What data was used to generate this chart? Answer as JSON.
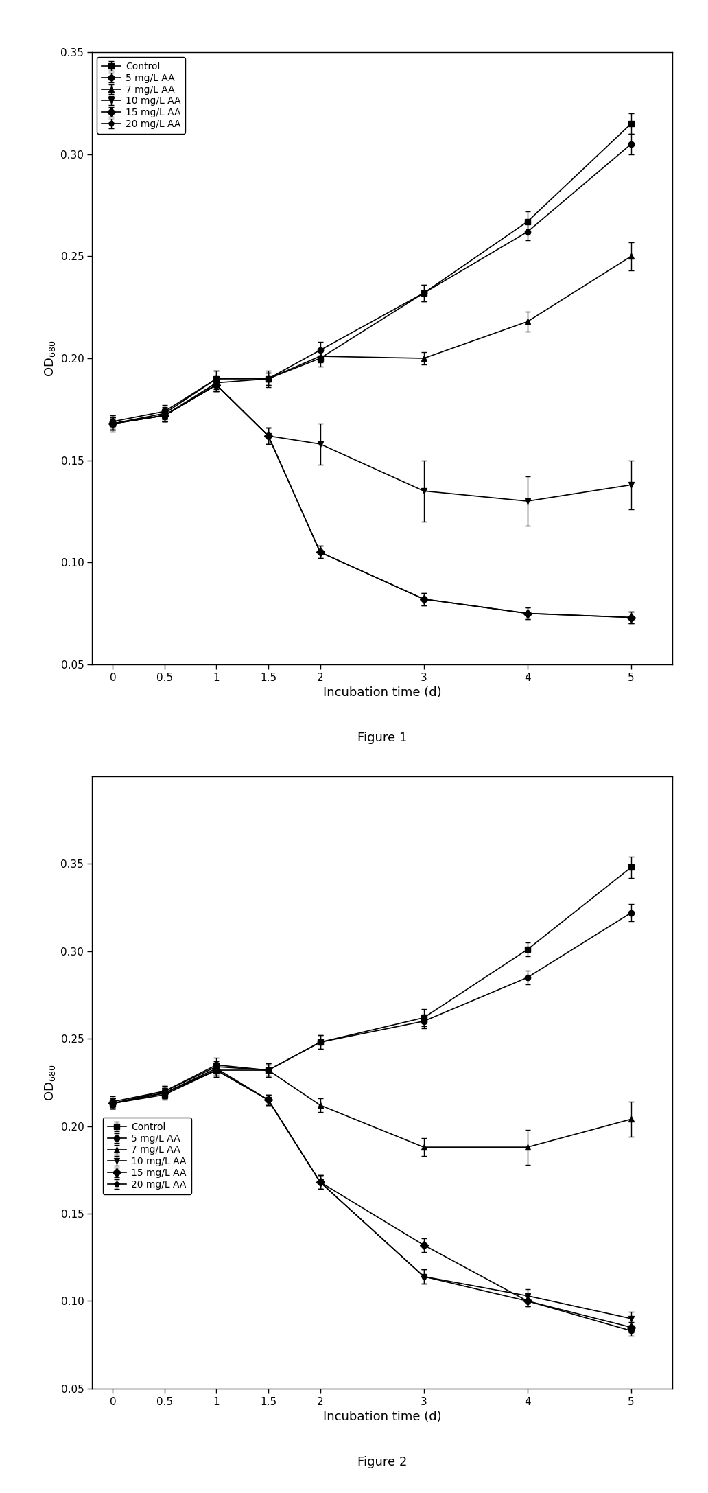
{
  "fig1": {
    "title": "Figure 1",
    "ylabel": "OD$_{680}$",
    "xlabel": "Incubation time (d)",
    "ylim": [
      0.05,
      0.35
    ],
    "yticks": [
      0.05,
      0.1,
      0.15,
      0.2,
      0.25,
      0.3,
      0.35
    ],
    "xticks": [
      0,
      0.5,
      1,
      1.5,
      2,
      3,
      4,
      5
    ],
    "xticklabels": [
      "0",
      "0.5",
      "1",
      "1.5",
      "2",
      "3",
      "4",
      "5"
    ],
    "series": [
      {
        "label": "Control",
        "marker": "s",
        "x": [
          0,
          0.5,
          1,
          1.5,
          2,
          3,
          4,
          5
        ],
        "y": [
          0.168,
          0.173,
          0.19,
          0.19,
          0.2,
          0.232,
          0.267,
          0.315
        ],
        "yerr": [
          0.004,
          0.003,
          0.004,
          0.004,
          0.004,
          0.004,
          0.005,
          0.005
        ]
      },
      {
        "label": "5 mg/L AA",
        "marker": "o",
        "x": [
          0,
          0.5,
          1,
          1.5,
          2,
          3,
          4,
          5
        ],
        "y": [
          0.169,
          0.174,
          0.19,
          0.19,
          0.204,
          0.232,
          0.262,
          0.305
        ],
        "yerr": [
          0.003,
          0.003,
          0.004,
          0.003,
          0.004,
          0.004,
          0.004,
          0.005
        ]
      },
      {
        "label": "7 mg/L AA",
        "marker": "^",
        "x": [
          0,
          0.5,
          1,
          1.5,
          2,
          3,
          4,
          5
        ],
        "y": [
          0.168,
          0.172,
          0.188,
          0.19,
          0.201,
          0.2,
          0.218,
          0.25
        ],
        "yerr": [
          0.003,
          0.003,
          0.003,
          0.003,
          0.003,
          0.003,
          0.005,
          0.007
        ]
      },
      {
        "label": "10 mg/L AA",
        "marker": "v",
        "x": [
          0,
          0.5,
          1,
          1.5,
          2,
          3,
          4,
          5
        ],
        "y": [
          0.168,
          0.172,
          0.187,
          0.162,
          0.158,
          0.135,
          0.13,
          0.138
        ],
        "yerr": [
          0.003,
          0.003,
          0.003,
          0.004,
          0.01,
          0.015,
          0.012,
          0.012
        ]
      },
      {
        "label": "15 mg/L AA",
        "marker": "D",
        "x": [
          0,
          0.5,
          1,
          1.5,
          2,
          3,
          4,
          5
        ],
        "y": [
          0.168,
          0.172,
          0.187,
          0.162,
          0.105,
          0.082,
          0.075,
          0.073
        ],
        "yerr": [
          0.003,
          0.003,
          0.003,
          0.004,
          0.003,
          0.003,
          0.003,
          0.003
        ]
      },
      {
        "label": "20 mg/L AA",
        "marker": "p",
        "x": [
          0,
          0.5,
          1,
          1.5,
          2,
          3,
          4,
          5
        ],
        "y": [
          0.168,
          0.172,
          0.187,
          0.162,
          0.105,
          0.082,
          0.075,
          0.073
        ],
        "yerr": [
          0.003,
          0.003,
          0.003,
          0.004,
          0.003,
          0.003,
          0.003,
          0.003
        ]
      }
    ],
    "legend_loc": "upper left"
  },
  "fig2": {
    "title": "Figure 2",
    "ylabel": "OD$_{680}$",
    "xlabel": "Incubation time (d)",
    "ylim": [
      0.05,
      0.4
    ],
    "yticks": [
      0.05,
      0.1,
      0.15,
      0.2,
      0.25,
      0.3,
      0.35
    ],
    "xticks": [
      0,
      0.5,
      1,
      1.5,
      2,
      3,
      4,
      5
    ],
    "xticklabels": [
      "0",
      "0.5",
      "1",
      "1.5",
      "2",
      "3",
      "4",
      "5"
    ],
    "series": [
      {
        "label": "Control",
        "marker": "s",
        "x": [
          0,
          0.5,
          1,
          1.5,
          2,
          3,
          4,
          5
        ],
        "y": [
          0.213,
          0.218,
          0.232,
          0.232,
          0.248,
          0.262,
          0.301,
          0.348
        ],
        "yerr": [
          0.003,
          0.003,
          0.004,
          0.004,
          0.004,
          0.005,
          0.004,
          0.006
        ]
      },
      {
        "label": "5 mg/L AA",
        "marker": "o",
        "x": [
          0,
          0.5,
          1,
          1.5,
          2,
          3,
          4,
          5
        ],
        "y": [
          0.214,
          0.22,
          0.235,
          0.232,
          0.248,
          0.26,
          0.285,
          0.322
        ],
        "yerr": [
          0.003,
          0.003,
          0.004,
          0.004,
          0.004,
          0.004,
          0.004,
          0.005
        ]
      },
      {
        "label": "7 mg/L AA",
        "marker": "^",
        "x": [
          0,
          0.5,
          1,
          1.5,
          2,
          3,
          4,
          5
        ],
        "y": [
          0.213,
          0.22,
          0.234,
          0.232,
          0.212,
          0.188,
          0.188,
          0.204
        ],
        "yerr": [
          0.003,
          0.003,
          0.003,
          0.003,
          0.004,
          0.005,
          0.01,
          0.01
        ]
      },
      {
        "label": "10 mg/L AA",
        "marker": "v",
        "x": [
          0,
          0.5,
          1,
          1.5,
          2,
          3,
          4,
          5
        ],
        "y": [
          0.213,
          0.219,
          0.233,
          0.215,
          0.168,
          0.114,
          0.103,
          0.09
        ],
        "yerr": [
          0.003,
          0.003,
          0.003,
          0.003,
          0.004,
          0.004,
          0.004,
          0.004
        ]
      },
      {
        "label": "15 mg/L AA",
        "marker": "D",
        "x": [
          0,
          0.5,
          1,
          1.5,
          2,
          3,
          4,
          5
        ],
        "y": [
          0.213,
          0.219,
          0.232,
          0.215,
          0.168,
          0.132,
          0.1,
          0.085
        ],
        "yerr": [
          0.003,
          0.003,
          0.003,
          0.003,
          0.004,
          0.004,
          0.003,
          0.003
        ]
      },
      {
        "label": "20 mg/L AA",
        "marker": "p",
        "x": [
          0,
          0.5,
          1,
          1.5,
          2,
          3,
          4,
          5
        ],
        "y": [
          0.213,
          0.219,
          0.232,
          0.215,
          0.168,
          0.114,
          0.1,
          0.083
        ],
        "yerr": [
          0.003,
          0.003,
          0.003,
          0.003,
          0.004,
          0.004,
          0.003,
          0.003
        ]
      }
    ],
    "legend_loc": "center left"
  },
  "line_color": "#000000",
  "marker_size": 6,
  "line_width": 1.2,
  "capsize": 3,
  "elinewidth": 1.0,
  "legend_fontsize": 10,
  "axis_fontsize": 13,
  "tick_fontsize": 11,
  "caption_fontsize": 13
}
